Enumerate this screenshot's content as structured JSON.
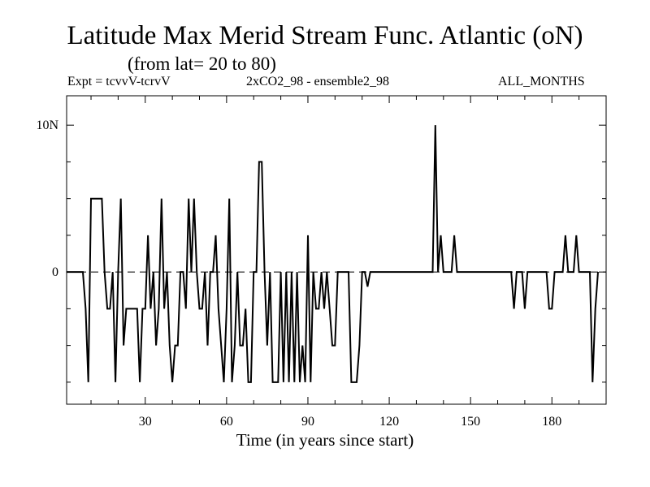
{
  "header": {
    "title": "Latitude Max Merid Stream Func. Atlantic (oN)",
    "subtitle": "(from lat= 20 to 80)",
    "expt": "Expt = tcvvV-tcrvV",
    "ensemble": "2xCO2_98 - ensemble2_98",
    "months": "ALL_MONTHS"
  },
  "chart_data": {
    "type": "line",
    "title": "Latitude Max Merid Stream Func. Atlantic (oN)",
    "subtitle": "(from lat= 20 to 80)",
    "xlabel": "Time (in years since start)",
    "ylabel": "",
    "xlim": [
      1,
      200
    ],
    "ylim": [
      -9,
      12
    ],
    "x_ticks": [
      30,
      60,
      90,
      120,
      150,
      180
    ],
    "x_tick_labels": [
      "30",
      "60",
      "90",
      "120",
      "150",
      "180"
    ],
    "y_ticks": [
      0,
      10
    ],
    "y_tick_labels": [
      "0",
      "10N"
    ],
    "zero_line": "dashed",
    "grid": false,
    "series": [
      {
        "points": [
          [
            1,
            0
          ],
          [
            7,
            0
          ],
          [
            8,
            -2.5
          ],
          [
            9,
            -7.5
          ],
          [
            10,
            5
          ],
          [
            14,
            5
          ],
          [
            15,
            0
          ],
          [
            16,
            -2.5
          ],
          [
            17,
            -2.5
          ],
          [
            18,
            0
          ],
          [
            19,
            -7.5
          ],
          [
            20,
            0
          ],
          [
            21,
            5
          ],
          [
            22,
            -5
          ],
          [
            23,
            -2.5
          ],
          [
            24,
            -2.5
          ],
          [
            25,
            -2.5
          ],
          [
            26,
            -2.5
          ],
          [
            27,
            -2.5
          ],
          [
            28,
            -7.5
          ],
          [
            29,
            -2.5
          ],
          [
            30,
            -2.5
          ],
          [
            31,
            2.5
          ],
          [
            32,
            -2.5
          ],
          [
            33,
            0
          ],
          [
            34,
            -5
          ],
          [
            35,
            -2.5
          ],
          [
            36,
            5
          ],
          [
            37,
            -2.5
          ],
          [
            38,
            0
          ],
          [
            39,
            -5
          ],
          [
            40,
            -7.5
          ],
          [
            41,
            -5
          ],
          [
            42,
            -5
          ],
          [
            43,
            0
          ],
          [
            44,
            0
          ],
          [
            45,
            -2.5
          ],
          [
            46,
            5
          ],
          [
            47,
            0
          ],
          [
            48,
            5
          ],
          [
            49,
            0
          ],
          [
            50,
            -2.5
          ],
          [
            51,
            -2.5
          ],
          [
            52,
            0
          ],
          [
            53,
            -5
          ],
          [
            54,
            0
          ],
          [
            55,
            0
          ],
          [
            56,
            2.5
          ],
          [
            57,
            -2.5
          ],
          [
            58,
            -5
          ],
          [
            59,
            -7.5
          ],
          [
            60,
            -2.5
          ],
          [
            61,
            5
          ],
          [
            62,
            -7.5
          ],
          [
            63,
            -5
          ],
          [
            64,
            0
          ],
          [
            65,
            -5
          ],
          [
            66,
            -5
          ],
          [
            67,
            -2.5
          ],
          [
            68,
            -7.5
          ],
          [
            69,
            -7.5
          ],
          [
            70,
            0
          ],
          [
            71,
            0
          ],
          [
            72,
            7.5
          ],
          [
            73,
            7.5
          ],
          [
            74,
            0
          ],
          [
            75,
            -5
          ],
          [
            76,
            0
          ],
          [
            77,
            -7.5
          ],
          [
            78,
            -7.5
          ],
          [
            79,
            -7.5
          ],
          [
            80,
            0
          ],
          [
            81,
            -7.5
          ],
          [
            82,
            0
          ],
          [
            83,
            -7.5
          ],
          [
            84,
            0
          ],
          [
            85,
            -7.5
          ],
          [
            86,
            0
          ],
          [
            87,
            -7.5
          ],
          [
            88,
            -5
          ],
          [
            89,
            -7.5
          ],
          [
            90,
            2.5
          ],
          [
            91,
            -7.5
          ],
          [
            92,
            0
          ],
          [
            93,
            -2.5
          ],
          [
            94,
            -2.5
          ],
          [
            95,
            0
          ],
          [
            96,
            -2.5
          ],
          [
            97,
            0
          ],
          [
            98,
            -2.5
          ],
          [
            99,
            -5
          ],
          [
            100,
            -5
          ],
          [
            101,
            0
          ],
          [
            105,
            0
          ],
          [
            106,
            -7.5
          ],
          [
            108,
            -7.5
          ],
          [
            109,
            -5
          ],
          [
            110,
            0
          ],
          [
            111,
            0
          ],
          [
            112,
            -1
          ],
          [
            113,
            0
          ],
          [
            136,
            0
          ],
          [
            137,
            10
          ],
          [
            138,
            0
          ],
          [
            139,
            2.5
          ],
          [
            140,
            0
          ],
          [
            143,
            0
          ],
          [
            144,
            2.5
          ],
          [
            145,
            0
          ],
          [
            165,
            0
          ],
          [
            166,
            -2.5
          ],
          [
            167,
            0
          ],
          [
            169,
            0
          ],
          [
            170,
            -2.5
          ],
          [
            171,
            0
          ],
          [
            178,
            0
          ],
          [
            179,
            -2.5
          ],
          [
            180,
            -2.5
          ],
          [
            181,
            0
          ],
          [
            184,
            0
          ],
          [
            185,
            2.5
          ],
          [
            186,
            0
          ],
          [
            188,
            0
          ],
          [
            189,
            2.5
          ],
          [
            190,
            0
          ],
          [
            194,
            0
          ],
          [
            195,
            -7.5
          ],
          [
            196,
            -2.5
          ],
          [
            197,
            0
          ]
        ]
      }
    ]
  }
}
